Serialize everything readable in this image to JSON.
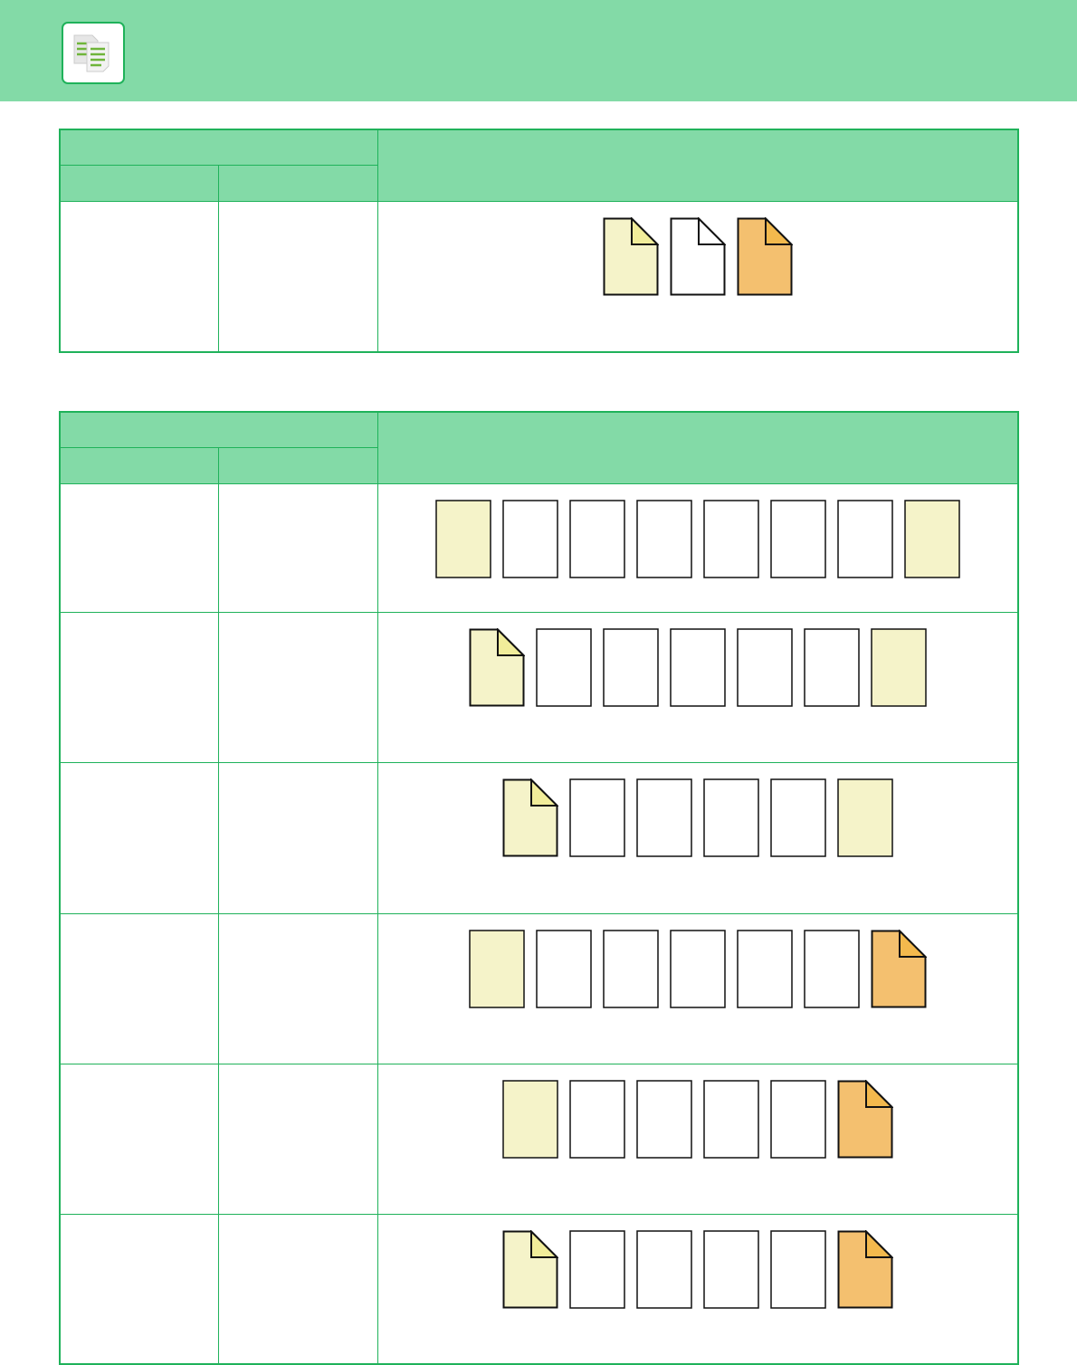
{
  "colors": {
    "header": "#83daa7",
    "border": "#1fb25a",
    "yellow": "#f5f3c9",
    "yellow_fold": "#f1ed9a",
    "orange": "#f4c06f",
    "orange_fold": "#f3b94d",
    "white": "#ffffff"
  },
  "header": {
    "icon": "copy-documents-icon"
  },
  "table1": {
    "rows": [
      {
        "pages": [
          "yellow-fold",
          "white-fold",
          "orange-fold"
        ]
      }
    ]
  },
  "table2": {
    "rows": [
      {
        "pages": [
          "yellow",
          "white",
          "white",
          "white",
          "white",
          "white",
          "white",
          "yellow"
        ]
      },
      {
        "pages": [
          "yellow-fold",
          "white",
          "white",
          "white",
          "white",
          "white",
          "yellow"
        ]
      },
      {
        "pages": [
          "yellow-fold",
          "white",
          "white",
          "white",
          "white",
          "yellow"
        ]
      },
      {
        "pages": [
          "yellow",
          "white",
          "white",
          "white",
          "white",
          "white",
          "orange-fold"
        ]
      },
      {
        "pages": [
          "yellow",
          "white",
          "white",
          "white",
          "white",
          "orange-fold"
        ]
      },
      {
        "pages": [
          "yellow-fold",
          "white",
          "white",
          "white",
          "white",
          "orange-fold"
        ]
      }
    ]
  }
}
